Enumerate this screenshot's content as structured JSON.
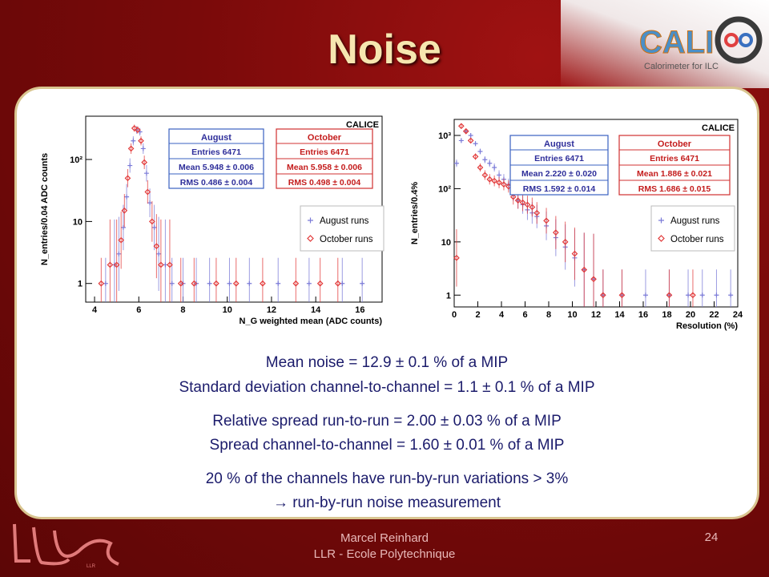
{
  "slide": {
    "title": "Noise",
    "logo": {
      "text_left": "CALI",
      "text_right": "C",
      "subtitle": "Calorimeter for ILC"
    },
    "text_lines": [
      "Mean noise = 12.9 ± 0.1 % of a MIP",
      "Standard deviation channel-to-channel = 1.1 ± 0.1 % of a MIP",
      "Relative spread run-to-run = 2.00 ± 0.03 % of a MIP",
      "Spread channel-to-channel = 1.60 ± 0.01 % of a MIP",
      "20 % of the channels have run-by-run variations > 3%",
      "→ run-by-run noise measurement"
    ],
    "footer": {
      "author": "Marcel Reinhard",
      "institution": "LLR - Ecole Polytechnique",
      "page": "24"
    },
    "llr_logo": "LLR"
  },
  "colors": {
    "august": "#7b7bd8",
    "october": "#e23a3a",
    "box_text": "#2e2e9a",
    "oct_text": "#c41c1c"
  },
  "chart_data": [
    {
      "type": "scatter",
      "label": "CALICE",
      "xlabel": "N_G weighted mean (ADC counts)",
      "ylabel": "N_entries/0.04 ADC counts",
      "xlim": [
        3.6,
        17
      ],
      "ylim": [
        0.5,
        500
      ],
      "yscale": "log",
      "xticks": [
        4,
        6,
        8,
        10,
        12,
        14,
        16
      ],
      "yticks": [
        {
          "v": 1,
          "t": "1"
        },
        {
          "v": 10,
          "t": "10"
        },
        {
          "v": 100,
          "t": "10²"
        }
      ],
      "stats": [
        {
          "name": "August",
          "entries": "Entries 6471",
          "mean": "Mean 5.948 ± 0.006",
          "rms": "RMS 0.486 ± 0.004"
        },
        {
          "name": "October",
          "entries": "Entries 6471",
          "mean": "Mean 5.958 ± 0.006",
          "rms": "RMS 0.498 ± 0.004"
        }
      ],
      "legend": [
        "August runs",
        "October runs"
      ],
      "series": [
        {
          "name": "August runs",
          "x": [
            4.5,
            4.9,
            5.1,
            5.3,
            5.45,
            5.6,
            5.75,
            5.9,
            6.05,
            6.2,
            6.35,
            6.5,
            6.7,
            6.9,
            7.2,
            7.5,
            8.0,
            8.6,
            9.2,
            10.1,
            11.0,
            12.3,
            13.7,
            15.2,
            16.1
          ],
          "y": [
            1,
            2,
            3,
            8,
            25,
            80,
            200,
            300,
            280,
            150,
            60,
            20,
            8,
            3,
            2,
            1,
            1,
            1,
            1,
            1,
            1,
            1,
            1,
            1,
            1
          ]
        },
        {
          "name": "October runs",
          "x": [
            4.3,
            4.7,
            5.0,
            5.2,
            5.35,
            5.5,
            5.65,
            5.8,
            5.95,
            6.1,
            6.25,
            6.4,
            6.6,
            6.8,
            7.0,
            7.4,
            7.9,
            8.5,
            9.5,
            10.4,
            11.6,
            13.1,
            14.2,
            15.0
          ],
          "y": [
            1,
            2,
            2,
            5,
            15,
            50,
            150,
            320,
            300,
            200,
            90,
            30,
            10,
            4,
            2,
            2,
            1,
            1,
            1,
            1,
            1,
            1,
            1,
            1
          ]
        }
      ]
    },
    {
      "type": "scatter",
      "label": "CALICE",
      "xlabel": "Resolution (%)",
      "ylabel": "N_entries/0.4%",
      "xlim": [
        0,
        24
      ],
      "ylim": [
        0.6,
        2000
      ],
      "yscale": "log",
      "xticks": [
        0,
        2,
        4,
        6,
        8,
        10,
        12,
        14,
        16,
        18,
        20,
        22,
        24
      ],
      "yticks": [
        {
          "v": 1,
          "t": "1"
        },
        {
          "v": 10,
          "t": "10"
        },
        {
          "v": 100,
          "t": "10²"
        },
        {
          "v": 1000,
          "t": "10³"
        }
      ],
      "stats": [
        {
          "name": "August",
          "entries": "Entries 6471",
          "mean": "Mean 2.220 ± 0.020",
          "rms": "RMS 1.592 ± 0.014"
        },
        {
          "name": "October",
          "entries": "Entries 6471",
          "mean": "Mean 1.886 ± 0.021",
          "rms": "RMS 1.686 ± 0.015"
        }
      ],
      "legend": [
        "August runs",
        "October runs"
      ],
      "series": [
        {
          "name": "August runs",
          "x": [
            0.2,
            0.6,
            1.0,
            1.4,
            1.8,
            2.2,
            2.6,
            3.0,
            3.4,
            3.8,
            4.2,
            4.6,
            5.0,
            5.4,
            5.8,
            6.2,
            6.6,
            7.0,
            7.8,
            8.6,
            9.4,
            10.2,
            11.0,
            11.8,
            12.6,
            14.2,
            16.2,
            18.2,
            19.8,
            21.0,
            22.2,
            23.4
          ],
          "y": [
            300,
            800,
            1200,
            1000,
            700,
            500,
            350,
            300,
            250,
            180,
            150,
            120,
            80,
            60,
            50,
            40,
            35,
            30,
            20,
            12,
            8,
            5,
            3,
            2,
            1,
            1,
            1,
            1,
            1,
            1,
            1,
            1
          ]
        },
        {
          "name": "October runs",
          "x": [
            0.2,
            0.6,
            1.0,
            1.4,
            1.8,
            2.2,
            2.6,
            3.0,
            3.4,
            3.8,
            4.2,
            4.6,
            5.0,
            5.4,
            5.8,
            6.2,
            6.6,
            7.0,
            7.8,
            8.6,
            9.4,
            10.2,
            11.0,
            11.8,
            12.6,
            14.2,
            18.2,
            20.2
          ],
          "y": [
            5,
            1500,
            1200,
            800,
            400,
            250,
            180,
            150,
            140,
            130,
            120,
            110,
            70,
            60,
            55,
            50,
            45,
            35,
            25,
            15,
            10,
            6,
            3,
            2,
            1,
            1,
            1,
            1
          ]
        }
      ]
    }
  ]
}
